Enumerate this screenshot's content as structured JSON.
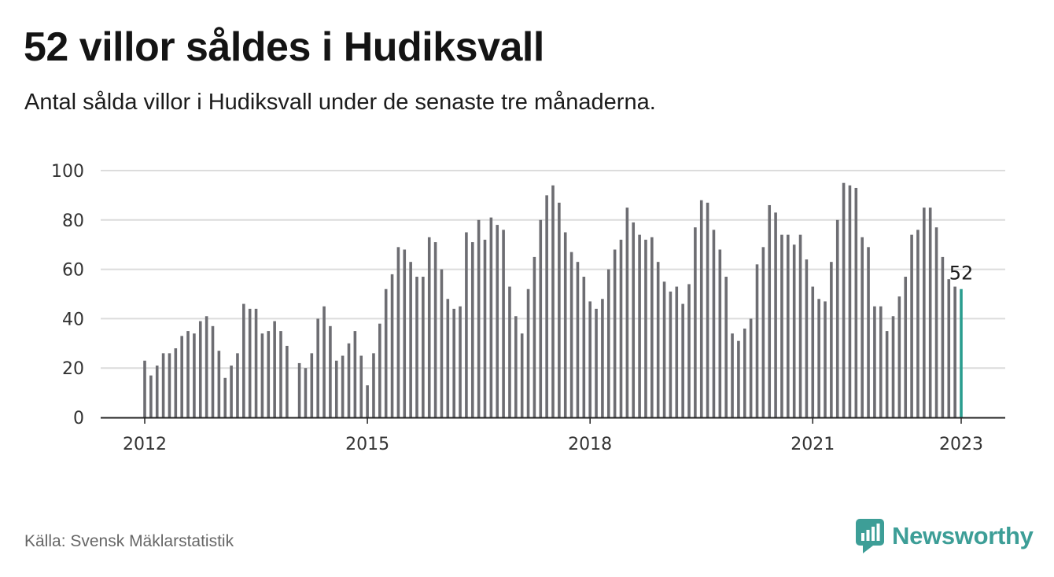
{
  "header": {
    "title": "52 villor såldes i Hudiksvall",
    "subtitle": "Antal sålda villor i Hudiksvall under de senaste tre månaderna."
  },
  "footer": {
    "source": "Källa: Svensk Mäklarstatistik",
    "brand": "Newsworthy",
    "brand_icon": "bar-chart-speech-bubble-icon"
  },
  "colors": {
    "bar": "#6d6d72",
    "highlight": "#2a9d8f",
    "grid": "#dcdcdc",
    "axis": "#222222",
    "brand": "#3d9e97"
  },
  "chart_data": {
    "type": "bar",
    "title": "52 villor såldes i Hudiksvall",
    "subtitle": "Antal sålda villor i Hudiksvall under de senaste tre månaderna.",
    "xlabel": "",
    "ylabel": "",
    "ylim": [
      0,
      100
    ],
    "yticks": [
      0,
      20,
      40,
      60,
      80,
      100
    ],
    "xticks": [
      "2012",
      "2015",
      "2018",
      "2021",
      "2023"
    ],
    "grid": true,
    "x_start": "2012-01",
    "x_end": "2023-01",
    "values": [
      23,
      17,
      21,
      26,
      26,
      28,
      33,
      35,
      34,
      39,
      41,
      37,
      27,
      16,
      21,
      26,
      46,
      44,
      44,
      34,
      35,
      39,
      35,
      29,
      null,
      22,
      20,
      26,
      40,
      45,
      37,
      23,
      25,
      30,
      35,
      25,
      13,
      26,
      38,
      52,
      58,
      69,
      68,
      63,
      57,
      57,
      73,
      71,
      60,
      48,
      44,
      45,
      75,
      71,
      80,
      72,
      81,
      78,
      76,
      53,
      41,
      34,
      52,
      65,
      80,
      90,
      94,
      87,
      75,
      67,
      63,
      57,
      47,
      44,
      48,
      60,
      68,
      72,
      85,
      79,
      74,
      72,
      73,
      63,
      55,
      51,
      53,
      46,
      54,
      77,
      88,
      87,
      76,
      68,
      57,
      34,
      31,
      36,
      40,
      62,
      69,
      86,
      83,
      74,
      74,
      70,
      74,
      64,
      53,
      48,
      47,
      63,
      80,
      95,
      94,
      93,
      73,
      69,
      45,
      45,
      35,
      41,
      49,
      57,
      74,
      76,
      85,
      85,
      77,
      65,
      56,
      53,
      52
    ],
    "highlight_last": true,
    "annotation": {
      "text": "52",
      "value": 52,
      "date": "2023-01"
    }
  }
}
